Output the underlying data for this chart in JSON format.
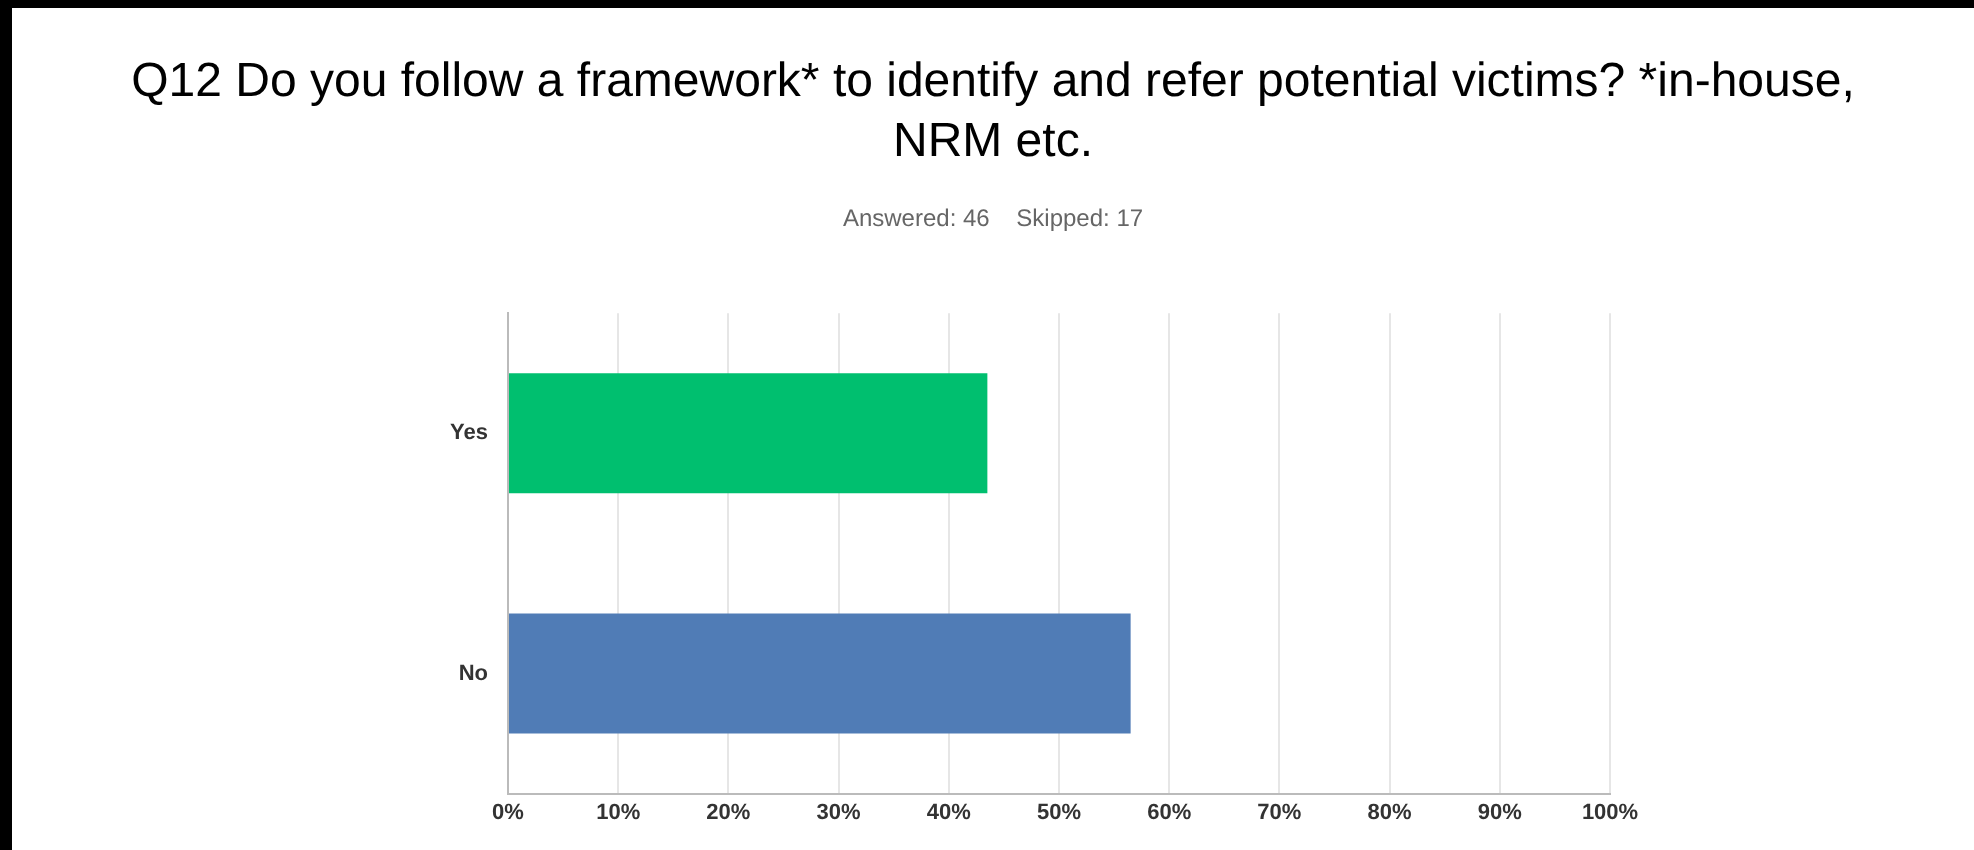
{
  "chart_data": {
    "type": "bar",
    "orientation": "horizontal",
    "title": "Q12 Do you follow a framework* to identify and refer potential victims? *in-house, NRM etc.",
    "subtitle": "Answered: 46    Skipped: 17",
    "categories": [
      "Yes",
      "No"
    ],
    "values": [
      43.5,
      56.5
    ],
    "colors": [
      "#00bf6f",
      "#507cb6"
    ],
    "xlim": [
      0,
      100
    ],
    "xticks": [
      {
        "value": 0,
        "label": "0%"
      },
      {
        "value": 10,
        "label": "10%"
      },
      {
        "value": 20,
        "label": "20%"
      },
      {
        "value": 30,
        "label": "30%"
      },
      {
        "value": 40,
        "label": "40%"
      },
      {
        "value": 50,
        "label": "50%"
      },
      {
        "value": 60,
        "label": "60%"
      },
      {
        "value": 70,
        "label": "70%"
      },
      {
        "value": 80,
        "label": "80%"
      },
      {
        "value": 90,
        "label": "90%"
      },
      {
        "value": 100,
        "label": "100%"
      }
    ],
    "grid": "x",
    "legend": false
  }
}
